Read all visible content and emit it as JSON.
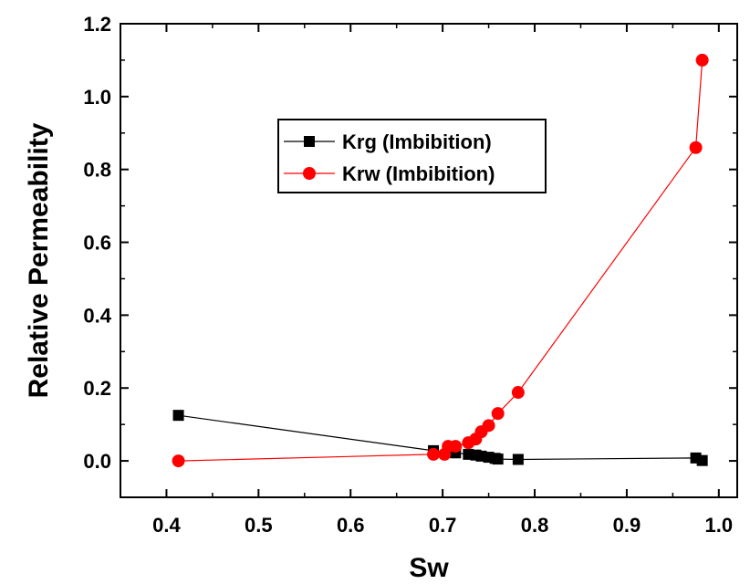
{
  "chart_data": {
    "type": "scatter",
    "title": "",
    "xlabel": "Sw",
    "ylabel": "Relative Permeability",
    "xlim": [
      0.35,
      1.02
    ],
    "ylim": [
      -0.1,
      1.2
    ],
    "xticks": [
      0.4,
      0.5,
      0.6,
      0.7,
      0.8,
      0.9,
      1.0
    ],
    "xtick_labels": [
      "0.4",
      "0.5",
      "0.6",
      "0.7",
      "0.8",
      "0.9",
      "1.0"
    ],
    "yticks": [
      0.0,
      0.2,
      0.4,
      0.6,
      0.8,
      1.0,
      1.2
    ],
    "ytick_labels": [
      "0.0",
      "0.2",
      "0.4",
      "0.6",
      "0.8",
      "1.0",
      "1.2"
    ],
    "grid": false,
    "legend_position": "upper-center",
    "series": [
      {
        "name": "Krg (Imbibition)",
        "color": "#000000",
        "marker": "square",
        "x": [
          0.413,
          0.69,
          0.714,
          0.728,
          0.736,
          0.742,
          0.75,
          0.757,
          0.76,
          0.782,
          0.975,
          0.982
        ],
        "y": [
          0.125,
          0.028,
          0.022,
          0.018,
          0.016,
          0.013,
          0.01,
          0.007,
          0.005,
          0.004,
          0.008,
          0.001
        ]
      },
      {
        "name": "Krw (Imbibition)",
        "color": "#ff0000",
        "marker": "circle",
        "x": [
          0.413,
          0.69,
          0.702,
          0.706,
          0.714,
          0.728,
          0.736,
          0.742,
          0.75,
          0.76,
          0.782,
          0.975,
          0.982
        ],
        "y": [
          0.0,
          0.018,
          0.018,
          0.04,
          0.04,
          0.05,
          0.06,
          0.08,
          0.097,
          0.13,
          0.188,
          0.86,
          1.1
        ]
      }
    ]
  }
}
